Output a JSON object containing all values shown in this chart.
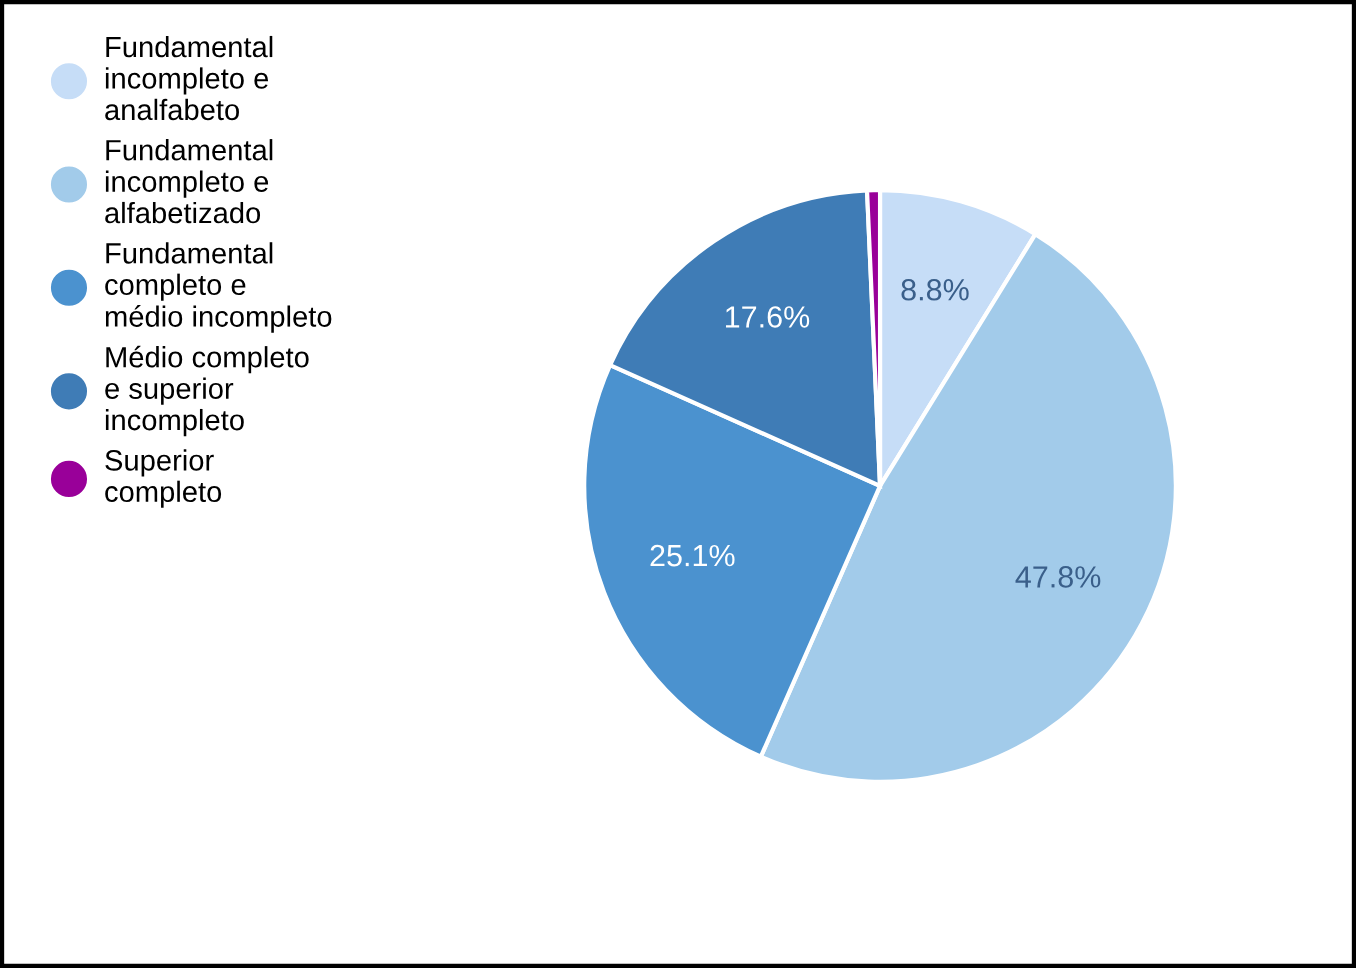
{
  "chart_data": {
    "type": "pie",
    "categories": [
      "Fundamental\nincompleto e\nanalfabeto",
      "Fundamental\nincompleto e\nalfabetizado",
      "Fundamental\ncompleto e\nmédio incompleto",
      "Médio completo\ne superior\nincompleto",
      "Superior\ncompleto"
    ],
    "values": [
      8.8,
      47.8,
      25.1,
      17.6,
      0.7
    ],
    "colors": [
      "#c6ddf7",
      "#a2cbea",
      "#4b92cf",
      "#3f7cb6",
      "#990099"
    ],
    "value_labels": [
      "8.8%",
      "47.8%",
      "25.1%",
      "17.6%",
      null
    ],
    "legend": "left"
  }
}
